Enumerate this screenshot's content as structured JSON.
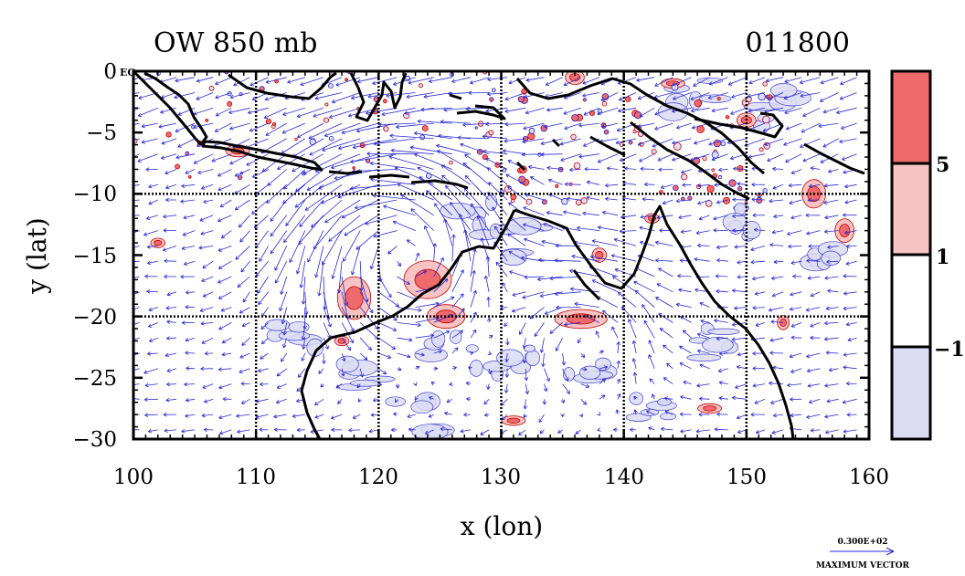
{
  "chart_data": {
    "type": "contour-vector-map",
    "title_left": "OW 850 mb",
    "title_right": "011800",
    "xlabel": "x (lon)",
    "ylabel": "y (lat)",
    "xlim": [
      100,
      160
    ],
    "ylim": [
      -30,
      0
    ],
    "x_ticks": [
      100,
      110,
      120,
      130,
      140,
      150,
      160
    ],
    "y_ticks": [
      0,
      -5,
      -10,
      -15,
      -20,
      -25,
      -30
    ],
    "y_tick_labels": [
      "0",
      "−5",
      "−10",
      "−15",
      "−20",
      "−25",
      "−30"
    ],
    "eq_label": "EQ",
    "grid": true,
    "grid_lines": {
      "lon": [
        110,
        120,
        130,
        140,
        150
      ],
      "lat": [
        -10,
        -20
      ]
    },
    "colorbar": {
      "levels": [
        -1,
        1,
        5
      ],
      "level_labels": [
        "−1",
        "1",
        "5"
      ],
      "colors": [
        "#dcdcf4",
        "#ffffff",
        "#f7c3c3",
        "#ef6a6a"
      ]
    },
    "vector_legend": {
      "magnitude": "0.300E+02",
      "label": "MAXIMUM VECTOR",
      "color": "#2929d4"
    },
    "colors": {
      "positive_fill": "#ef6a6a",
      "positive_light": "#f7c3c3",
      "positive_line": "#c80000",
      "negative_fill": "#dcdcf4",
      "negative_line": "#2020d0",
      "vector": "#2929d4",
      "coast": "#000000"
    },
    "features": [
      {
        "name": "anticyclonic circulation",
        "lon": 122,
        "lat": -14
      },
      {
        "name": "anticyclonic circulation",
        "lon": 137,
        "lat": -21
      },
      {
        "name": "positive OW maximum",
        "lon": 124,
        "lat": -17
      },
      {
        "name": "positive OW maximum",
        "lon": 136.5,
        "lat": -20.2
      },
      {
        "name": "positive OW maximum",
        "lon": 118,
        "lat": -18.5
      }
    ]
  }
}
